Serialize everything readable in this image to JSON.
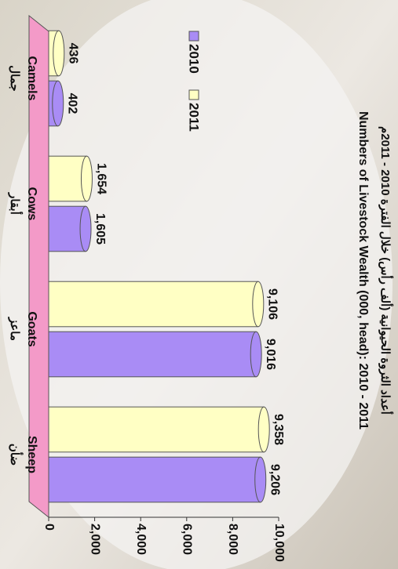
{
  "chart_data": {
    "type": "bar",
    "title": "أعداد الثروة الحيوانية (ألف رأس) خلال الفترة 2010 - 2011م",
    "subtitle": "Numbers of Livestock Wealth (000, head): 2010 - 2011",
    "categories": [
      "Camels",
      "Cows",
      "Goats",
      "Sheep"
    ],
    "categories_ar": [
      "جمال",
      "أبقار",
      "ماعز",
      "ضأن"
    ],
    "series": [
      {
        "name": "2010",
        "color": "#a98cf5",
        "values": [
          402,
          1605,
          9016,
          9206
        ],
        "value_labels": [
          "402",
          "1,605",
          "9,016",
          "9,206"
        ]
      },
      {
        "name": "2011",
        "color": "#ffffc4",
        "values": [
          436,
          1654,
          9106,
          9358
        ],
        "value_labels": [
          "436",
          "1,654",
          "9,106",
          "9,358"
        ]
      }
    ],
    "ylim": [
      0,
      10000
    ],
    "yticks": [
      0,
      {
        "value": 2000,
        "label": "2,000"
      },
      {
        "value": 4000,
        "label": "4,000"
      },
      {
        "value": 6000,
        "label": "6,000"
      },
      {
        "value": 8000,
        "label": "8,000"
      },
      {
        "value": 10000,
        "label": "10,000"
      }
    ]
  }
}
